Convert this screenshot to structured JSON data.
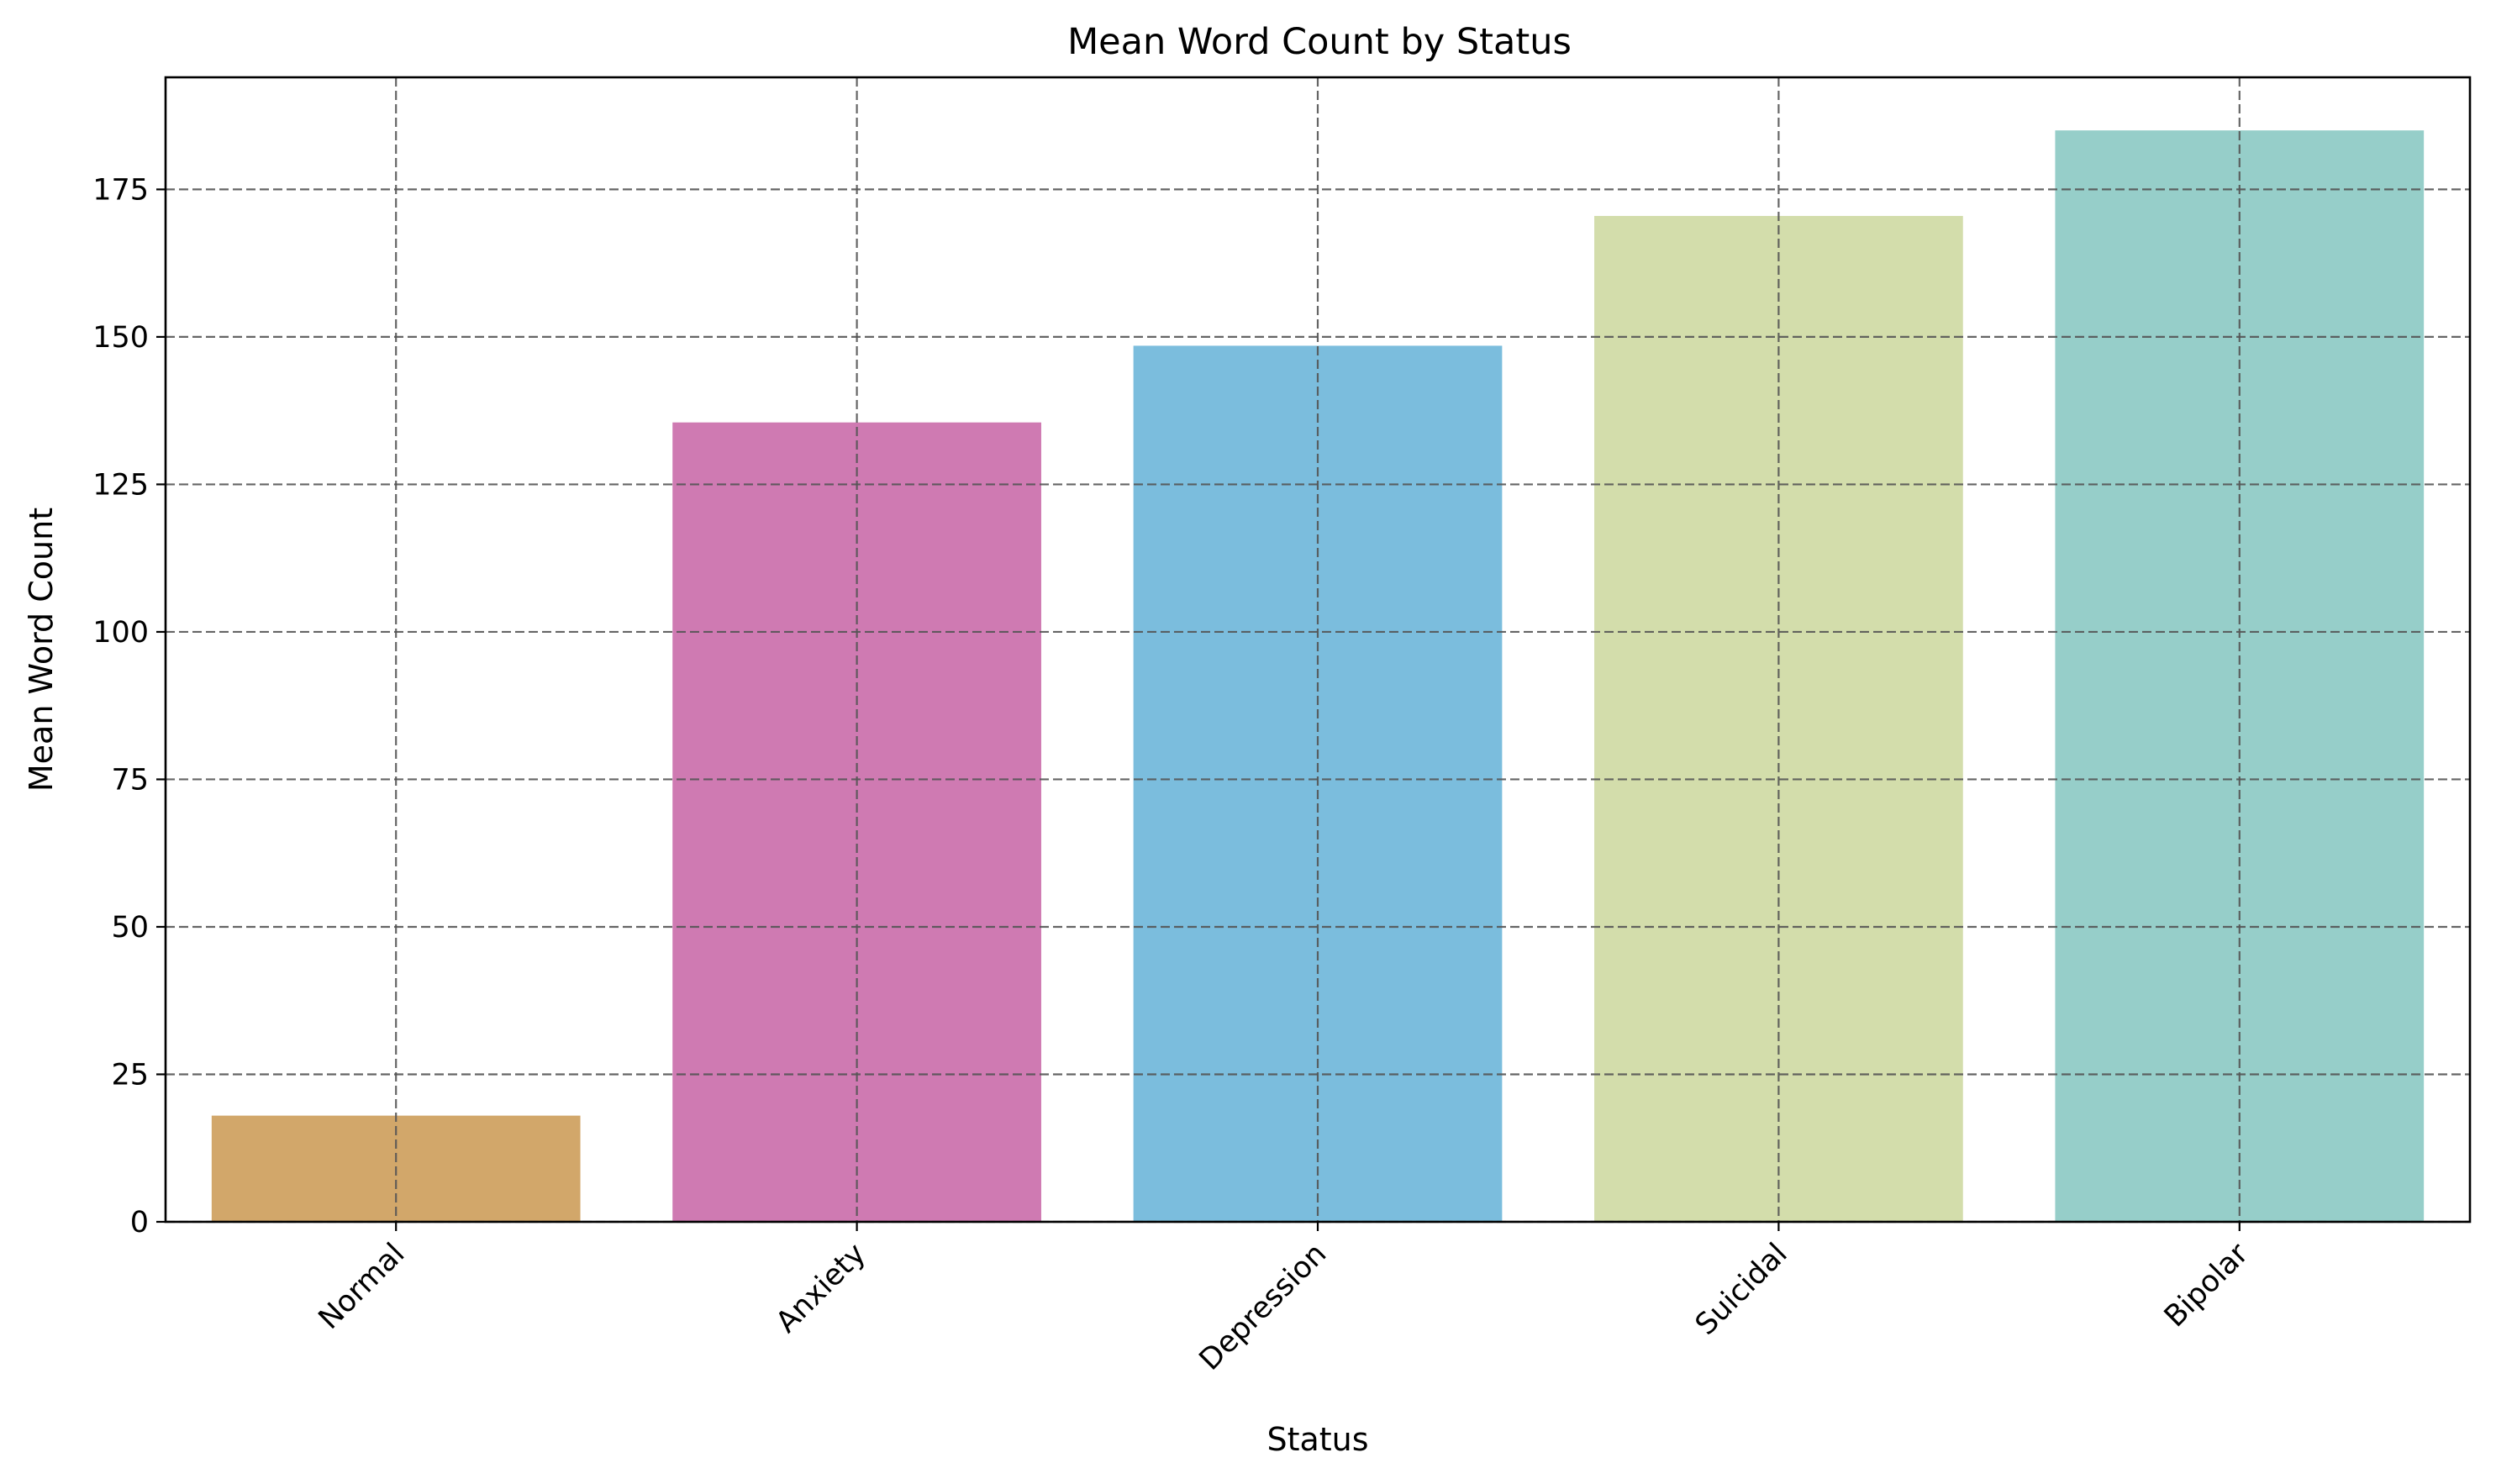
{
  "chart_data": {
    "type": "bar",
    "title": "Mean Word Count by Status",
    "xlabel": "Status",
    "ylabel": "Mean Word Count",
    "categories": [
      "Normal",
      "Anxiety",
      "Depression",
      "Suicidal",
      "Bipolar"
    ],
    "values": [
      18,
      135.5,
      148.5,
      170.5,
      185
    ],
    "colors": [
      "#d2a76a",
      "#cf7ab2",
      "#7bbddd",
      "#d3ddab",
      "#96cec9"
    ],
    "ylim": [
      0,
      194
    ],
    "yticks": [
      0,
      25,
      50,
      75,
      100,
      125,
      150,
      175
    ],
    "grid": true,
    "x_tick_rotation_deg": 45
  }
}
